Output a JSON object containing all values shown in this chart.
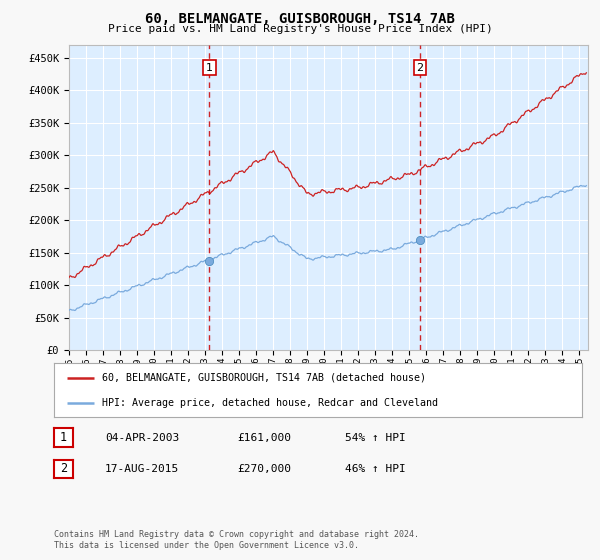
{
  "title": "60, BELMANGATE, GUISBOROUGH, TS14 7AB",
  "subtitle": "Price paid vs. HM Land Registry's House Price Index (HPI)",
  "ylabel_ticks": [
    "£0",
    "£50K",
    "£100K",
    "£150K",
    "£200K",
    "£250K",
    "£300K",
    "£350K",
    "£400K",
    "£450K"
  ],
  "ytick_values": [
    0,
    50000,
    100000,
    150000,
    200000,
    250000,
    300000,
    350000,
    400000,
    450000
  ],
  "ylim": [
    0,
    470000
  ],
  "xlim_start": 1995.0,
  "xlim_end": 2025.5,
  "sale1_date": 2003.25,
  "sale1_price": 161000,
  "sale1_hpi": 104000,
  "sale1_label": "1",
  "sale2_date": 2015.62,
  "sale2_price": 270000,
  "sale2_hpi": 185000,
  "sale2_label": "2",
  "hpi_color": "#7aaadd",
  "price_color": "#cc2222",
  "dot_color": "#7aaadd",
  "background_color": "#ddeeff",
  "grid_color": "#ffffff",
  "fig_facecolor": "#f8f8f8",
  "legend_label1": "60, BELMANGATE, GUISBOROUGH, TS14 7AB (detached house)",
  "legend_label2": "HPI: Average price, detached house, Redcar and Cleveland",
  "table_row1": [
    "1",
    "04-APR-2003",
    "£161,000",
    "54% ↑ HPI"
  ],
  "table_row2": [
    "2",
    "17-AUG-2015",
    "£270,000",
    "46% ↑ HPI"
  ],
  "footnote1": "Contains HM Land Registry data © Crown copyright and database right 2024.",
  "footnote2": "This data is licensed under the Open Government Licence v3.0."
}
